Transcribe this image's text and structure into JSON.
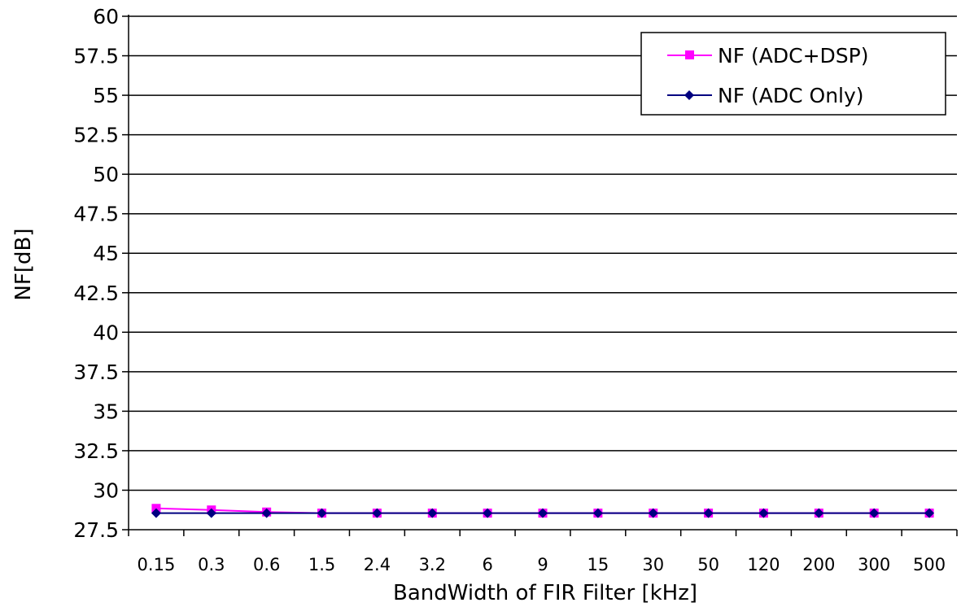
{
  "chart_data": {
    "type": "line",
    "categories": [
      "0.15",
      "0.3",
      "0.6",
      "1.5",
      "2.4",
      "3.2",
      "6",
      "9",
      "15",
      "30",
      "50",
      "120",
      "200",
      "300",
      "500"
    ],
    "series": [
      {
        "name": "NF (ADC+DSP)",
        "color": "#ff00ff",
        "marker": "square",
        "values": [
          28.85,
          28.75,
          28.62,
          28.55,
          28.55,
          28.55,
          28.55,
          28.55,
          28.55,
          28.55,
          28.55,
          28.55,
          28.55,
          28.55,
          28.55
        ]
      },
      {
        "name": "NF (ADC Only)",
        "color": "#000080",
        "marker": "diamond",
        "values": [
          28.55,
          28.55,
          28.55,
          28.55,
          28.55,
          28.55,
          28.55,
          28.55,
          28.55,
          28.55,
          28.55,
          28.55,
          28.55,
          28.55,
          28.55
        ]
      }
    ],
    "y_ticks": [
      "27.5",
      "30",
      "32.5",
      "35",
      "37.5",
      "40",
      "42.5",
      "45",
      "47.5",
      "50",
      "52.5",
      "55",
      "57.5",
      "60"
    ],
    "xlabel": "BandWidth of FIR Filter [kHz]",
    "ylabel": "NF[dB]",
    "ylim": [
      27.5,
      60
    ],
    "grid": "horizontal",
    "legend_position": "top-right"
  }
}
